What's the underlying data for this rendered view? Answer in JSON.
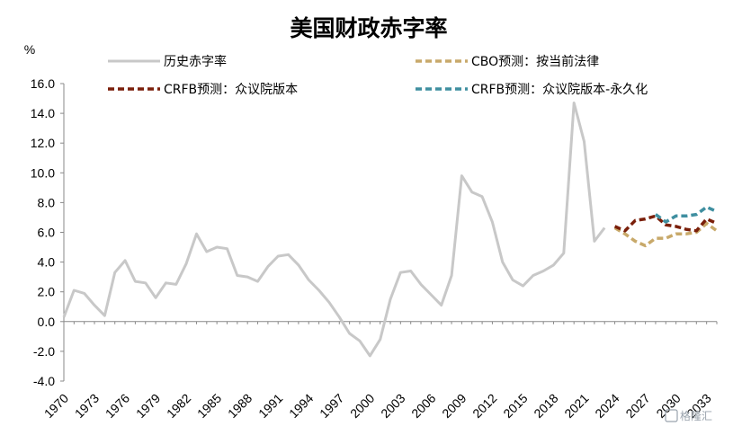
{
  "chart_data": {
    "type": "line",
    "title": "美国财政赤字率",
    "unit_label": "%",
    "ylim": [
      -4.0,
      16.0
    ],
    "yticks": [
      "16.0",
      "14.0",
      "12.0",
      "10.0",
      "8.0",
      "6.0",
      "4.0",
      "2.0",
      "0.0",
      "-2.0",
      "-4.0"
    ],
    "xlim": [
      1970,
      2034
    ],
    "xticks": [
      1970,
      1973,
      1976,
      1979,
      1982,
      1985,
      1988,
      1991,
      1994,
      1997,
      2000,
      2003,
      2006,
      2009,
      2012,
      2015,
      2018,
      2021,
      2024,
      2027,
      2030,
      2033
    ],
    "grid": false,
    "legend_position": "top",
    "series": [
      {
        "name": "历史赤字率",
        "color": "#c8c8c8",
        "dash": "solid",
        "x": [
          1970,
          1971,
          1972,
          1973,
          1974,
          1975,
          1976,
          1977,
          1978,
          1979,
          1980,
          1981,
          1982,
          1983,
          1984,
          1985,
          1986,
          1987,
          1988,
          1989,
          1990,
          1991,
          1992,
          1993,
          1994,
          1995,
          1996,
          1997,
          1998,
          1999,
          2000,
          2001,
          2002,
          2003,
          2004,
          2005,
          2006,
          2007,
          2008,
          2009,
          2010,
          2011,
          2012,
          2013,
          2014,
          2015,
          2016,
          2017,
          2018,
          2019,
          2020,
          2021,
          2022,
          2023
        ],
        "values": [
          0.3,
          2.1,
          1.9,
          1.1,
          0.4,
          3.3,
          4.1,
          2.7,
          2.6,
          1.6,
          2.6,
          2.5,
          3.9,
          5.9,
          4.7,
          5.0,
          4.9,
          3.1,
          3.0,
          2.7,
          3.7,
          4.4,
          4.5,
          3.8,
          2.8,
          2.1,
          1.3,
          0.3,
          -0.8,
          -1.3,
          -2.3,
          -1.2,
          1.5,
          3.3,
          3.4,
          2.5,
          1.8,
          1.1,
          3.1,
          9.8,
          8.7,
          8.4,
          6.7,
          4.0,
          2.8,
          2.4,
          3.1,
          3.4,
          3.8,
          4.6,
          14.7,
          12.1,
          5.4,
          6.3
        ]
      },
      {
        "name": "CBO预测：按当前法律",
        "color": "#c8a96a",
        "dash": "dashed",
        "x": [
          2024,
          2025,
          2026,
          2027,
          2028,
          2029,
          2030,
          2031,
          2032,
          2033,
          2034
        ],
        "values": [
          6.3,
          5.9,
          5.4,
          5.1,
          5.6,
          5.6,
          5.9,
          5.9,
          6.0,
          6.6,
          6.1
        ]
      },
      {
        "name": "CRFB预测：众议院版本",
        "color": "#7a1f0a",
        "dash": "dashed",
        "x": [
          2024,
          2025,
          2026,
          2027,
          2028,
          2029,
          2030,
          2031,
          2032,
          2033,
          2034
        ],
        "values": [
          6.4,
          6.1,
          6.8,
          6.9,
          7.1,
          6.5,
          6.4,
          6.2,
          6.1,
          6.9,
          6.6
        ]
      },
      {
        "name": "CRFB预测：众议院版本-永久化",
        "color": "#3f8fa0",
        "dash": "dashed",
        "x": [
          2028,
          2029,
          2030,
          2031,
          2032,
          2033,
          2034
        ],
        "values": [
          7.2,
          6.7,
          7.1,
          7.1,
          7.2,
          7.7,
          7.4
        ]
      }
    ]
  },
  "watermark": "格隆汇"
}
